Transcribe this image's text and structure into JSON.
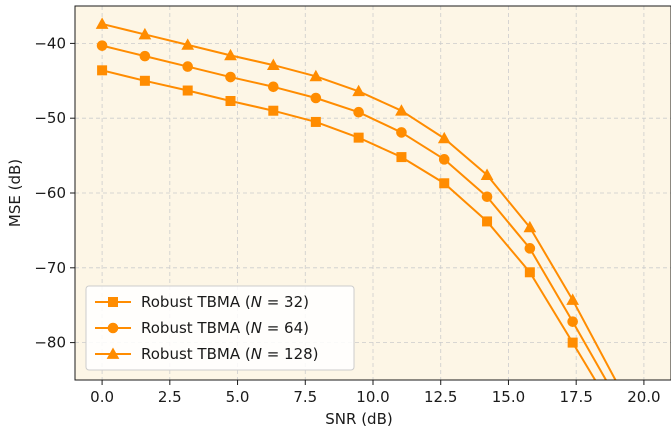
{
  "chart_data": {
    "type": "line",
    "title": "",
    "xlabel": "SNR (dB)",
    "ylabel": "MSE (dB)",
    "xlim": [
      -1.0,
      21.0
    ],
    "ylim": [
      -85.0,
      -35.0
    ],
    "xticks": [
      0.0,
      2.5,
      5.0,
      7.5,
      10.0,
      12.5,
      15.0,
      17.5,
      20.0
    ],
    "xtick_labels": [
      "0.0",
      "2.5",
      "5.0",
      "7.5",
      "10.0",
      "12.5",
      "15.0",
      "17.5",
      "20.0"
    ],
    "yticks": [
      -40,
      -50,
      -60,
      -70,
      -80
    ],
    "ytick_labels": [
      "−40",
      "−50",
      "−60",
      "−70",
      "−80"
    ],
    "grid": true,
    "legend_position": "bottom-left",
    "colors": {
      "line": "#ff8c00",
      "plot_background": "#fdf6e6",
      "grid": "#cccccc"
    },
    "series": [
      {
        "name_prefix": "Robust TBMA (",
        "name_var": "N",
        "name_value": " = 32",
        "name_suffix": ")",
        "marker": "square",
        "x": [
          0.0,
          1.58,
          3.16,
          4.74,
          6.32,
          7.89,
          9.47,
          11.05,
          12.63,
          14.21,
          15.79,
          17.37,
          18.2
        ],
        "y": [
          -43.6,
          -45.0,
          -46.3,
          -47.7,
          -49.0,
          -50.5,
          -52.6,
          -55.2,
          -58.7,
          -63.8,
          -70.6,
          -80.0,
          -85.0
        ]
      },
      {
        "name_prefix": "Robust TBMA (",
        "name_var": "N",
        "name_value": " = 64",
        "name_suffix": ")",
        "marker": "circle",
        "x": [
          0.0,
          1.58,
          3.16,
          4.74,
          6.32,
          7.89,
          9.47,
          11.05,
          12.63,
          14.21,
          15.79,
          17.37,
          18.6
        ],
        "y": [
          -40.3,
          -41.7,
          -43.1,
          -44.5,
          -45.8,
          -47.3,
          -49.2,
          -51.9,
          -55.5,
          -60.5,
          -67.4,
          -77.2,
          -85.0
        ]
      },
      {
        "name_prefix": "Robust TBMA (",
        "name_var": "N",
        "name_value": " = 128",
        "name_suffix": ")",
        "marker": "triangle",
        "x": [
          0.0,
          1.58,
          3.16,
          4.74,
          6.32,
          7.89,
          9.47,
          11.05,
          12.63,
          14.21,
          15.79,
          17.37,
          18.95
        ],
        "y": [
          -37.4,
          -38.8,
          -40.2,
          -41.6,
          -42.9,
          -44.4,
          -46.4,
          -49.0,
          -52.7,
          -57.6,
          -64.6,
          -74.3,
          -85.0
        ]
      }
    ]
  }
}
